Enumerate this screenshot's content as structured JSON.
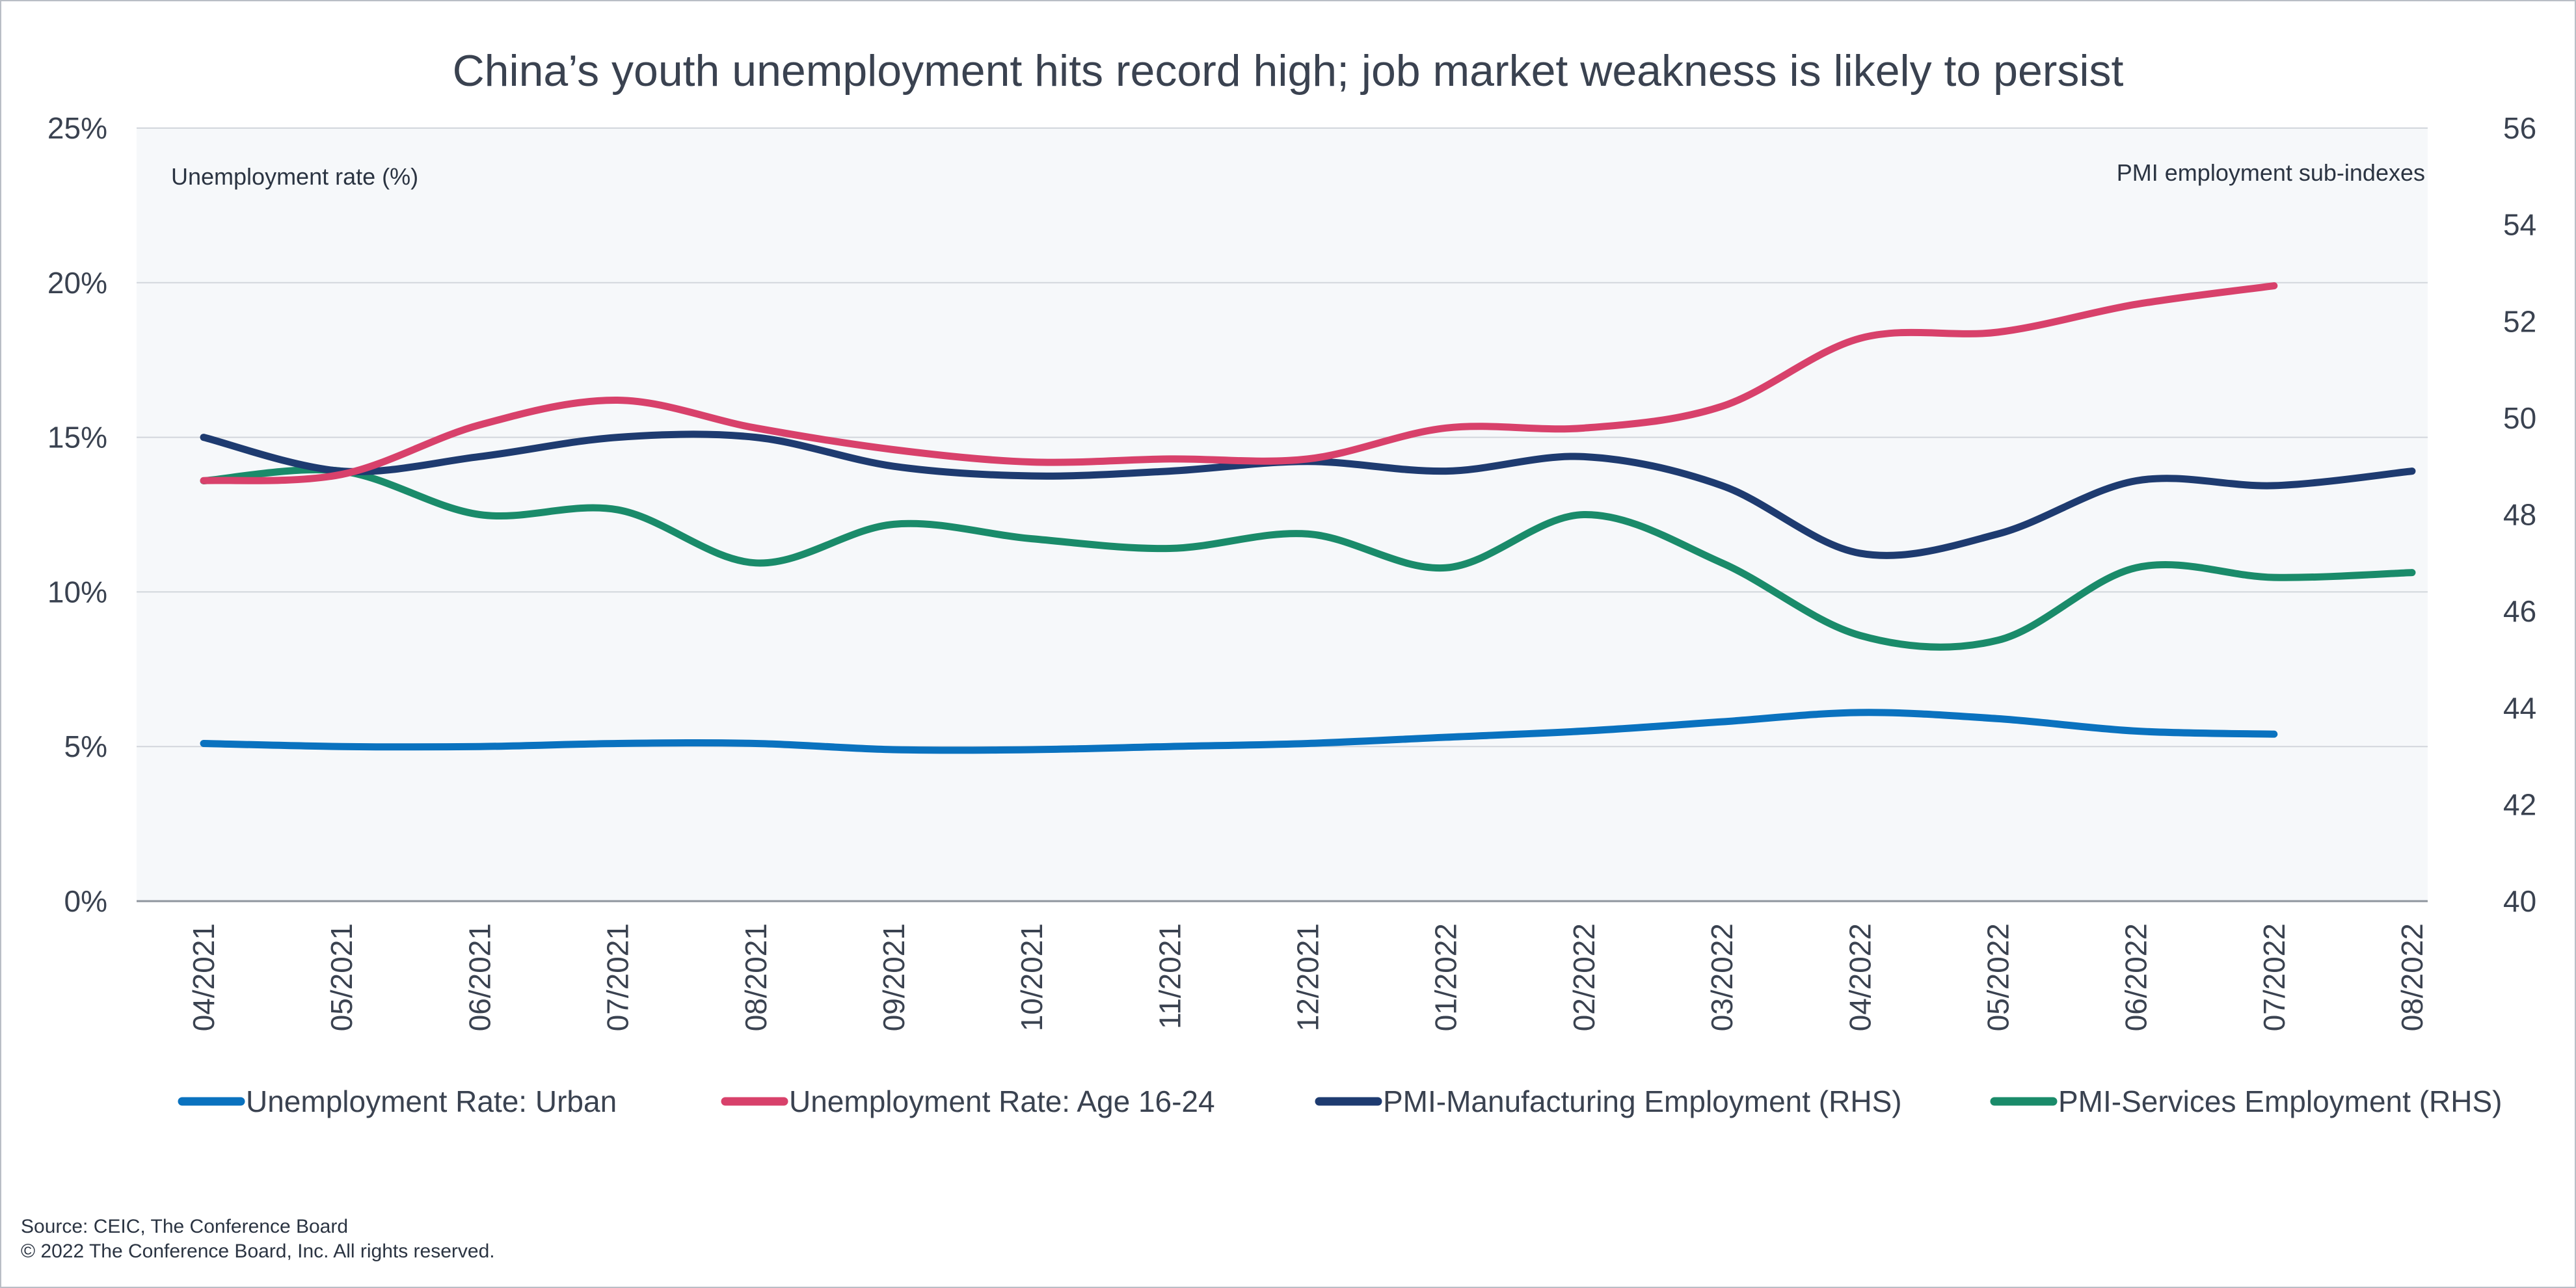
{
  "chart_data": {
    "type": "line",
    "title": "China’s youth unemployment hits record high; job market weakness is likely to persist",
    "ylabel_left": "Unemployment rate (%)",
    "ylabel_right": "PMI employment sub-indexes",
    "x": [
      "04/2021",
      "05/2021",
      "06/2021",
      "07/2021",
      "08/2021",
      "09/2021",
      "10/2021",
      "11/2021",
      "12/2021",
      "01/2022",
      "02/2022",
      "03/2022",
      "04/2022",
      "05/2022",
      "06/2022",
      "07/2022",
      "08/2022"
    ],
    "ylim_left": [
      0,
      25
    ],
    "ylim_right": [
      40,
      56
    ],
    "yticks_left": [
      "0%",
      "5%",
      "10%",
      "15%",
      "20%",
      "25%"
    ],
    "yticks_left_values": [
      0,
      5,
      10,
      15,
      20,
      25
    ],
    "yticks_right": [
      "40",
      "42",
      "44",
      "46",
      "48",
      "50",
      "52",
      "54",
      "56"
    ],
    "yticks_right_values": [
      40,
      42,
      44,
      46,
      48,
      50,
      52,
      54,
      56
    ],
    "grid": "horizontal",
    "legend_position": "bottom",
    "series": [
      {
        "name": "Unemployment Rate: Urban",
        "axis": "left",
        "color": "#0a72bf",
        "values": [
          5.1,
          5.0,
          5.0,
          5.1,
          5.1,
          4.9,
          4.9,
          5.0,
          5.1,
          5.3,
          5.5,
          5.8,
          6.1,
          5.9,
          5.5,
          5.4,
          null
        ]
      },
      {
        "name": "Unemployment Rate: Age 16-24",
        "axis": "left",
        "color": "#d8416b",
        "values": [
          13.6,
          13.8,
          15.4,
          16.2,
          15.3,
          14.6,
          14.2,
          14.3,
          14.3,
          15.3,
          15.3,
          16.0,
          18.2,
          18.4,
          19.3,
          19.9,
          null
        ]
      },
      {
        "name": "PMI-Manufacturing Employment (RHS)",
        "axis": "right",
        "color": "#1e3b70",
        "values": [
          49.6,
          48.9,
          49.2,
          49.6,
          49.6,
          49.0,
          48.8,
          48.9,
          49.1,
          48.9,
          49.2,
          48.6,
          47.2,
          47.6,
          48.7,
          48.6,
          48.9
        ]
      },
      {
        "name": "PMI-Services Employment (RHS)",
        "axis": "right",
        "color": "#1a8b6a",
        "values": [
          48.7,
          48.9,
          48.0,
          48.1,
          47.0,
          47.8,
          47.5,
          47.3,
          47.6,
          46.9,
          48.0,
          47.0,
          45.5,
          45.4,
          46.9,
          46.7,
          46.8
        ]
      }
    ]
  },
  "footer": {
    "source": "Source: CEIC, The Conference Board",
    "copyright": "© 2022 The Conference Board, Inc. All rights reserved."
  }
}
